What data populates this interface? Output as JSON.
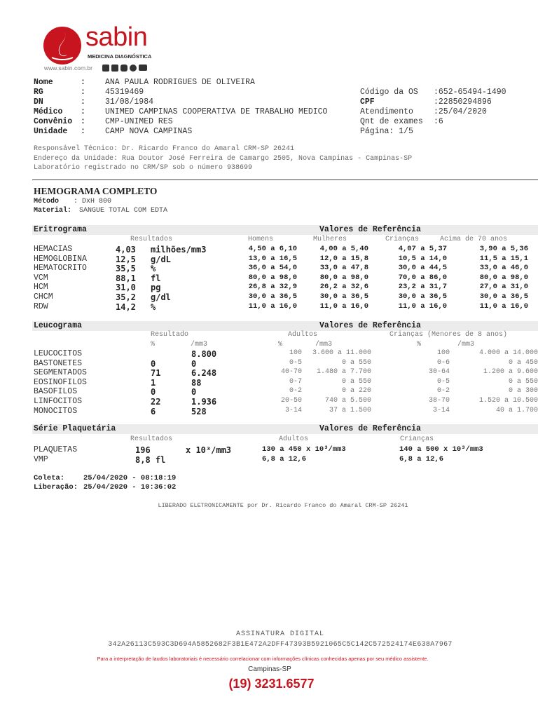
{
  "logo": {
    "brand": "sabin",
    "tagline": "MEDICINA DIAGNÓSTICA",
    "website": "www.sabin.com.br",
    "social_icons": [
      "twitter",
      "facebook",
      "instagram",
      "spotify",
      "youtube"
    ],
    "color": "#c8141e"
  },
  "patient": {
    "left": [
      {
        "label": "Nome",
        "value": "ANA PAULA RODRIGUES DE OLIVEIRA"
      },
      {
        "label": "RG",
        "value": "45319469"
      },
      {
        "label": "DN",
        "value": "31/08/1984"
      },
      {
        "label": "Médico",
        "value": "UNIMED CAMPINAS COOPERATIVA DE TRABALHO MEDICO"
      },
      {
        "label": "Convênio",
        "value": "CMP-UNIMED RES"
      },
      {
        "label": "Unidade",
        "value": "CAMP NOVA CAMPINAS"
      }
    ],
    "right": [
      {
        "label": "Código da OS",
        "value": ":652-65494-1490"
      },
      {
        "label": "CPF",
        "value": ":22850294896"
      },
      {
        "label": "Atendimento",
        "value": ":25/04/2020"
      },
      {
        "label": "Qnt de exames",
        "value": ":6"
      },
      {
        "label": "Página: 1/5",
        "value": ""
      }
    ]
  },
  "info": [
    "Responsável Técnico: Dr. Ricardo Franco do Amaral CRM-SP 26241",
    "Endereço da Unidade: Rua Doutor José Ferreira de Camargo 2505, Nova Campinas - Campinas-SP",
    "Laboratório registrado no CRM/SP sob o número 938699"
  ],
  "exam": {
    "title": "HEMOGRAMA COMPLETO",
    "method_label": "Método",
    "method": ": DxH 800",
    "material_label": "Material:",
    "material": "SANGUE TOTAL COM EDTA"
  },
  "ref_title": "Valores de Referência",
  "eritrograma": {
    "title": "Eritrograma",
    "headers": [
      "Resultados",
      "Homens",
      "Mulheres",
      "Crianças",
      "Acima de 70 anos"
    ],
    "rows": [
      [
        "HEMACIAS",
        "4,03",
        "milhões/mm3",
        "4,50 a 6,10",
        "4,00 a 5,40",
        "4,07 a 5,37",
        "3,90 a 5,36"
      ],
      [
        "HEMOGLOBINA",
        "12,5",
        "g/dL",
        "13,0 a 16,5",
        "12,0 a 15,8",
        "10,5 a 14,0",
        "11,5 a 15,1"
      ],
      [
        "HEMATOCRITO",
        "35,5",
        "%",
        "36,0 a 54,0",
        "33,0 a 47,8",
        "30,0 a 44,5",
        "33,0 a 46,0"
      ],
      [
        "VCM",
        "88,1",
        "fl",
        "80,0 a 98,0",
        "80,0 a 98,0",
        "70,0 a 86,0",
        "80,0 a 98,0"
      ],
      [
        "HCM",
        "31,0",
        "pg",
        "26,8 a 32,9",
        "26,2 a 32,6",
        "23,2 a 31,7",
        "27,0 a 31,0"
      ],
      [
        "CHCM",
        "35,2",
        "g/dl",
        "30,0 a 36,5",
        "30,0 a 36,5",
        "30,0 a 36,5",
        "30,0 a 36,5"
      ],
      [
        "RDW",
        "14,2",
        "%",
        "11,0 a 16,0",
        "11,0 a 16,0",
        "11,0 a 16,0",
        "11,0 a 16,0"
      ]
    ]
  },
  "leucograma": {
    "title": "Leucograma",
    "headers": [
      "Resultado",
      "Adultos",
      "Crianças (Menores de 8 anos)"
    ],
    "units": [
      "%",
      "/mm3",
      "%",
      "/mm3",
      "%",
      "/mm3"
    ],
    "rows": [
      [
        "LEUCOCITOS",
        "",
        "8.800",
        "100",
        "3.600 a 11.000",
        "100",
        "4.000 a 14.000"
      ],
      [
        "BASTONETES",
        "0",
        "0",
        "0-5",
        "0 a 550",
        "0-6",
        "0 a 450"
      ],
      [
        "SEGMENTADOS",
        "71",
        "6.248",
        "40-70",
        "1.480 a 7.700",
        "30-64",
        "1.200 a 9.600"
      ],
      [
        "EOSINOFILOS",
        "1",
        "88",
        "0-7",
        "0 a 550",
        "0-5",
        "0 a 550"
      ],
      [
        "BASOFILOS",
        "0",
        "0",
        "0-2",
        "0 a 220",
        "0-2",
        "0 a 300"
      ],
      [
        "LINFOCITOS",
        "22",
        "1.936",
        "20-50",
        "740 a  5.500",
        "38-70",
        "1.520 a 10.500"
      ],
      [
        "MONOCITOS",
        "6",
        "528",
        "3-14",
        "37 a 1.500",
        "3-14",
        "40 a 1.700"
      ]
    ]
  },
  "plaquetaria": {
    "title": "Série Plaquetária",
    "headers": [
      "Resultados",
      "Adultos",
      "Crianças"
    ],
    "rows": [
      [
        "PLAQUETAS",
        "196",
        "x 10³/mm3",
        "130 a 450  x 10³/mm3",
        "140 a 500  x 10³/mm3"
      ],
      [
        "VMP",
        "8,8 fl",
        "",
        "6,8 a 12,6",
        "6,8 a 12,6"
      ]
    ]
  },
  "coleta": {
    "label": "Coleta:",
    "value": "25/04/2020 - 08:18:19"
  },
  "liberacao": {
    "label": "Liberação:",
    "value": "25/04/2020 - 10:36:02"
  },
  "liberado": "LIBERADO ELETRONICAMENTE por Dr. Ricardo Franco do Amaral CRM-SP 26241",
  "footer": {
    "signature_title": "ASSINATURA DIGITAL",
    "hash": "342A26113C593C3D694A5852682F3B1E472A2DFF47393B5921065C5C142C572524174E638A7967",
    "disclaimer": "Para a interpretação de laudos laboratoriais é necessário correlacionar com informações clínicas conhecidas apenas por seu médico assistente.",
    "city": "Campinas-SP",
    "phone": "(19) 3231.6577"
  }
}
